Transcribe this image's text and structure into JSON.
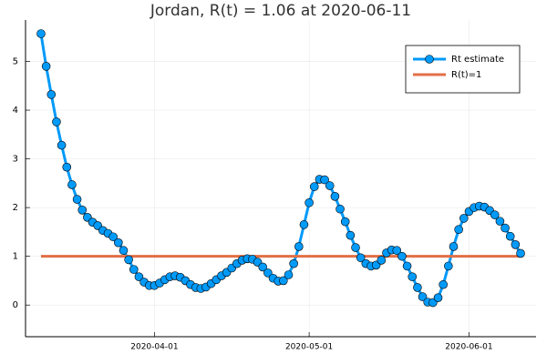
{
  "chart_data": {
    "type": "line",
    "title": "Jordan, R(t) = 1.06 at 2020-06-11",
    "x": [
      "2020-03-10",
      "2020-03-11",
      "2020-03-12",
      "2020-03-13",
      "2020-03-14",
      "2020-03-15",
      "2020-03-16",
      "2020-03-17",
      "2020-03-18",
      "2020-03-19",
      "2020-03-20",
      "2020-03-21",
      "2020-03-22",
      "2020-03-23",
      "2020-03-24",
      "2020-03-25",
      "2020-03-26",
      "2020-03-27",
      "2020-03-28",
      "2020-03-29",
      "2020-03-30",
      "2020-03-31",
      "2020-04-01",
      "2020-04-02",
      "2020-04-03",
      "2020-04-04",
      "2020-04-05",
      "2020-04-06",
      "2020-04-07",
      "2020-04-08",
      "2020-04-09",
      "2020-04-10",
      "2020-04-11",
      "2020-04-12",
      "2020-04-13",
      "2020-04-14",
      "2020-04-15",
      "2020-04-16",
      "2020-04-17",
      "2020-04-18",
      "2020-04-19",
      "2020-04-20",
      "2020-04-21",
      "2020-04-22",
      "2020-04-23",
      "2020-04-24",
      "2020-04-25",
      "2020-04-26",
      "2020-04-27",
      "2020-04-28",
      "2020-04-29",
      "2020-04-30",
      "2020-05-01",
      "2020-05-02",
      "2020-05-03",
      "2020-05-04",
      "2020-05-05",
      "2020-05-06",
      "2020-05-07",
      "2020-05-08",
      "2020-05-09",
      "2020-05-10",
      "2020-05-11",
      "2020-05-12",
      "2020-05-13",
      "2020-05-14",
      "2020-05-15",
      "2020-05-16",
      "2020-05-17",
      "2020-05-18",
      "2020-05-19",
      "2020-05-20",
      "2020-05-21",
      "2020-05-22",
      "2020-05-23",
      "2020-05-24",
      "2020-05-25",
      "2020-05-26",
      "2020-05-27",
      "2020-05-28",
      "2020-05-29",
      "2020-05-30",
      "2020-05-31",
      "2020-06-01",
      "2020-06-02",
      "2020-06-03",
      "2020-06-04",
      "2020-06-05",
      "2020-06-06",
      "2020-06-07",
      "2020-06-08",
      "2020-06-09",
      "2020-06-10",
      "2020-06-11"
    ],
    "series": [
      {
        "name": "Rt estimate",
        "color": "#009af9",
        "marker": true,
        "values": [
          5.57,
          4.9,
          4.32,
          3.76,
          3.28,
          2.83,
          2.47,
          2.17,
          1.95,
          1.8,
          1.7,
          1.63,
          1.53,
          1.47,
          1.4,
          1.28,
          1.12,
          0.93,
          0.73,
          0.58,
          0.47,
          0.4,
          0.4,
          0.45,
          0.52,
          0.58,
          0.6,
          0.57,
          0.5,
          0.42,
          0.36,
          0.34,
          0.37,
          0.44,
          0.52,
          0.6,
          0.67,
          0.76,
          0.85,
          0.92,
          0.95,
          0.94,
          0.88,
          0.78,
          0.66,
          0.55,
          0.49,
          0.5,
          0.62,
          0.85,
          1.2,
          1.65,
          2.1,
          2.43,
          2.58,
          2.57,
          2.45,
          2.23,
          1.97,
          1.71,
          1.43,
          1.18,
          0.97,
          0.85,
          0.8,
          0.82,
          0.92,
          1.07,
          1.13,
          1.12,
          1.0,
          0.8,
          0.58,
          0.36,
          0.17,
          0.06,
          0.05,
          0.15,
          0.42,
          0.8,
          1.2,
          1.55,
          1.78,
          1.92,
          2.0,
          2.03,
          2.01,
          1.94,
          1.85,
          1.72,
          1.58,
          1.41,
          1.24,
          1.06
        ]
      },
      {
        "name": "R(t)=1",
        "color": "#e26f46",
        "marker": false,
        "values": [
          1,
          1,
          1,
          1,
          1,
          1,
          1,
          1,
          1,
          1,
          1,
          1,
          1,
          1,
          1,
          1,
          1,
          1,
          1,
          1,
          1,
          1,
          1,
          1,
          1,
          1,
          1,
          1,
          1,
          1,
          1,
          1,
          1,
          1,
          1,
          1,
          1,
          1,
          1,
          1,
          1,
          1,
          1,
          1,
          1,
          1,
          1,
          1,
          1,
          1,
          1,
          1,
          1,
          1,
          1,
          1,
          1,
          1,
          1,
          1,
          1,
          1,
          1,
          1,
          1,
          1,
          1,
          1,
          1,
          1,
          1,
          1,
          1,
          1,
          1,
          1,
          1,
          1,
          1,
          1,
          1,
          1,
          1,
          1,
          1,
          1,
          1,
          1,
          1,
          1,
          1,
          1,
          1,
          1
        ]
      }
    ],
    "xlim": [
      "2020-03-07",
      "2020-06-14"
    ],
    "xticks": [
      "2020-04-01",
      "2020-05-01",
      "2020-06-01"
    ],
    "ylim": [
      -0.65,
      5.85
    ],
    "yticks": [
      0,
      1,
      2,
      3,
      4,
      5
    ],
    "grid": true,
    "legend": "top-right"
  }
}
